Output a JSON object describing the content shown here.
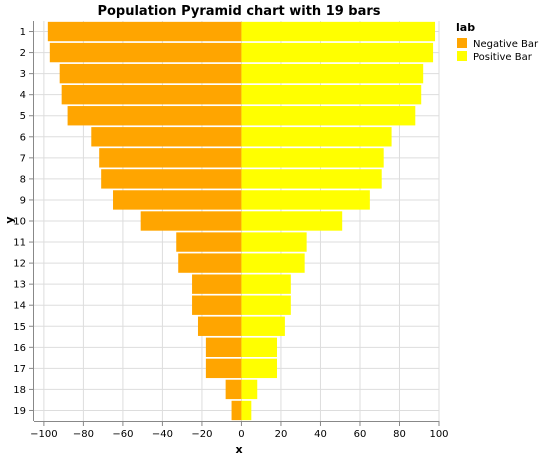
{
  "chart_data": {
    "type": "bar",
    "orientation": "horizontal",
    "title": "Population Pyramid chart with 19 bars",
    "xlabel": "x",
    "ylabel": "y",
    "xlim": [
      -105,
      100
    ],
    "x_ticks": [
      -100,
      -80,
      -60,
      -40,
      -20,
      0,
      20,
      40,
      60,
      80,
      100
    ],
    "grid": true,
    "categories": [
      "1",
      "2",
      "3",
      "4",
      "5",
      "6",
      "7",
      "8",
      "9",
      "10",
      "11",
      "12",
      "13",
      "14",
      "15",
      "16",
      "17",
      "18",
      "19"
    ],
    "legend": {
      "title": "lab",
      "placement": "top-right"
    },
    "series": [
      {
        "name": "Negative Bar",
        "color": "#ffa500",
        "values": [
          -98,
          -97,
          -92,
          -91,
          -88,
          -76,
          -72,
          -71,
          -65,
          -51,
          -33,
          -32,
          -25,
          -25,
          -22,
          -18,
          -18,
          -8,
          -5
        ]
      },
      {
        "name": "Positive Bar",
        "color": "#ffff00",
        "values": [
          98,
          97,
          92,
          91,
          88,
          76,
          72,
          71,
          65,
          51,
          33,
          32,
          25,
          25,
          22,
          18,
          18,
          8,
          5
        ]
      }
    ]
  }
}
